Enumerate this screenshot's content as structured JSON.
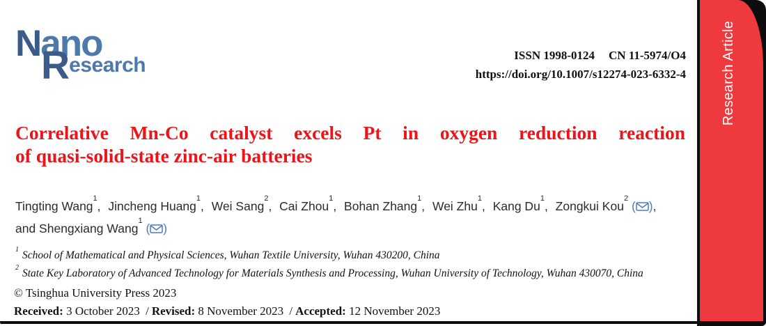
{
  "journal": {
    "logo": {
      "part1_dark": "N",
      "part1_light": "ano",
      "part2_dark": "R",
      "part2_light": "esearch"
    },
    "issn": "ISSN 1998-0124",
    "cn": "CN 11-5974/O4",
    "doi": "https://doi.org/10.1007/s12274-023-6332-4"
  },
  "banner": {
    "label": "Research Article",
    "color": "#ee3a3e"
  },
  "article": {
    "title_line1": "Correlative Mn-Co catalyst excels Pt in oxygen reduction reaction",
    "title_line2": "of quasi-solid-state zinc-air batteries",
    "title_color": "#ec1319",
    "author_separator": ",",
    "authors": [
      {
        "name": "Tingting Wang",
        "sup": "1",
        "email": false
      },
      {
        "name": "Jincheng Huang",
        "sup": "1",
        "email": false
      },
      {
        "name": "Wei Sang",
        "sup": "2",
        "email": false
      },
      {
        "name": "Cai Zhou",
        "sup": "1",
        "email": false
      },
      {
        "name": "Bohan Zhang",
        "sup": "1",
        "email": false
      },
      {
        "name": "Wei Zhu",
        "sup": "1",
        "email": false
      },
      {
        "name": "Kang Du",
        "sup": "1",
        "email": false
      },
      {
        "name": "Zongkui Kou",
        "sup": "2",
        "email": true
      },
      {
        "name": "and Shengxiang Wang",
        "sup": "1",
        "email": true
      }
    ],
    "affiliations": [
      {
        "sup": "1",
        "text": "School of Mathematical and Physical Sciences, Wuhan Textile University, Wuhan 430200, China"
      },
      {
        "sup": "2",
        "text": "State Key Laboratory of Advanced Technology for Materials Synthesis and Processing, Wuhan University of Technology, Wuhan 430070, China"
      }
    ]
  },
  "footer": {
    "copyright": "© Tsinghua University Press 2023",
    "date_separator": "/",
    "dates": [
      {
        "label": "Received:",
        "value": "3 October 2023"
      },
      {
        "label": "Revised:",
        "value": "8 November 2023"
      },
      {
        "label": "Accepted:",
        "value": "12 November 2023"
      }
    ]
  },
  "colors": {
    "logo_dark_blue": "#3b5c8a",
    "logo_light_blue": "#4e79ab",
    "title_red": "#ec1319",
    "banner_red": "#ee3a3e",
    "email_icon_blue": "#4a7dc0",
    "edge_black": "#0d0d0d"
  }
}
